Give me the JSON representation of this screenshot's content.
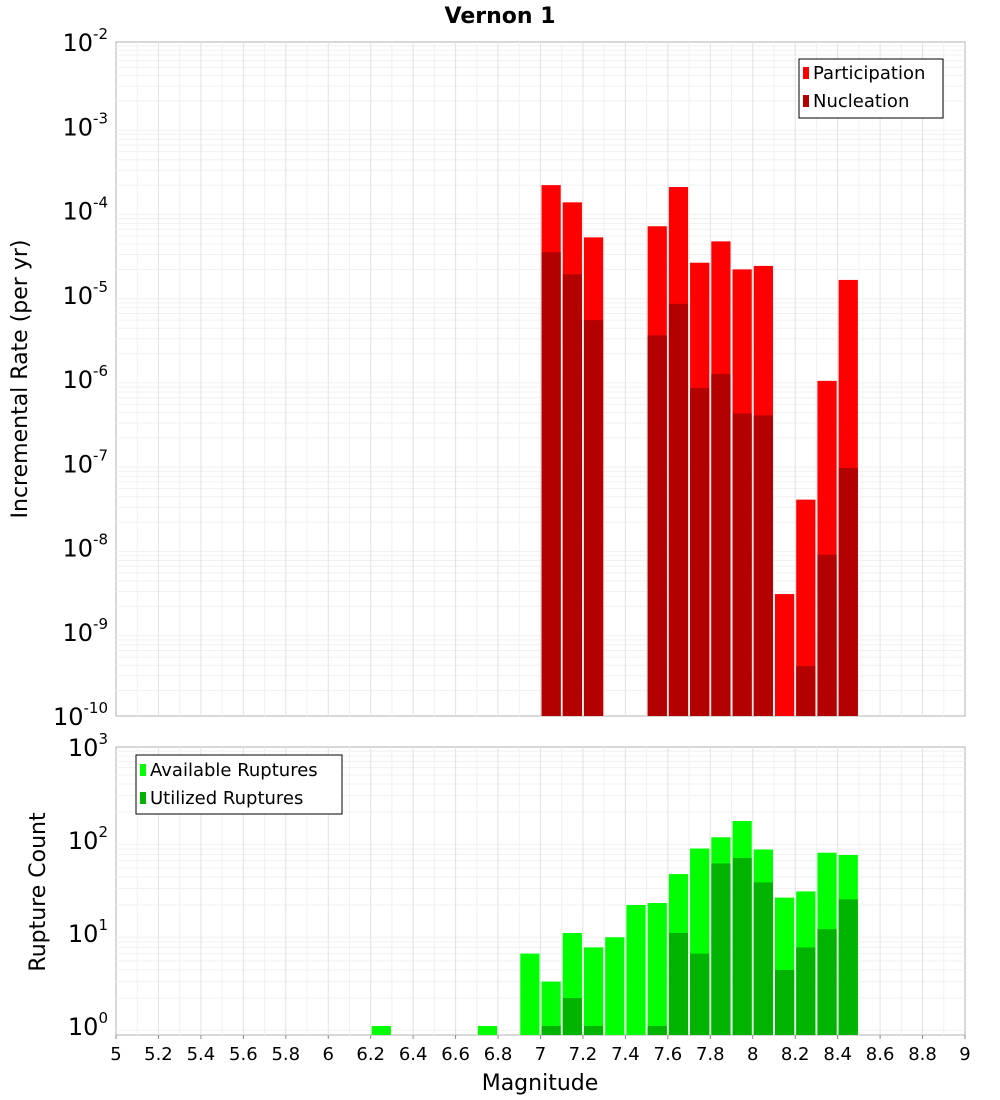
{
  "title": "Vernon 1",
  "colors": {
    "participation": "#ff0000",
    "nucleation": "#b30000",
    "available": "#00ff00",
    "utilized": "#00b300"
  },
  "chart_data": [
    {
      "type": "bar",
      "scale": "log",
      "xlabel": "",
      "ylabel": "Incremental Rate (per yr)",
      "xlim": [
        5,
        9
      ],
      "ylim": [
        1e-10,
        0.01
      ],
      "grid": true,
      "legend_position": "top-right",
      "y_ticks": [
        {
          "base": "10",
          "exp": "-10"
        },
        {
          "base": "10",
          "exp": "-9"
        },
        {
          "base": "10",
          "exp": "-8"
        },
        {
          "base": "10",
          "exp": "-7"
        },
        {
          "base": "10",
          "exp": "-6"
        },
        {
          "base": "10",
          "exp": "-5"
        },
        {
          "base": "10",
          "exp": "-4"
        },
        {
          "base": "10",
          "exp": "-3"
        },
        {
          "base": "10",
          "exp": "-2"
        }
      ],
      "series": [
        {
          "name": "Participation",
          "x": [
            7.05,
            7.15,
            7.25,
            7.55,
            7.65,
            7.75,
            7.85,
            7.95,
            8.05,
            8.15,
            8.25,
            8.35,
            8.45
          ],
          "values": [
            0.0002,
            0.000125,
            4.8e-05,
            6.5e-05,
            0.00019,
            2.4e-05,
            4.3e-05,
            2e-05,
            2.2e-05,
            2.8e-09,
            3.7e-08,
            9.5e-07,
            1.5e-05
          ]
        },
        {
          "name": "Nucleation",
          "x": [
            7.05,
            7.15,
            7.25,
            7.55,
            7.65,
            7.75,
            7.85,
            7.95,
            8.05,
            8.25,
            8.35,
            8.45
          ],
          "values": [
            3.2e-05,
            1.75e-05,
            5e-06,
            3.3e-06,
            7.8e-06,
            7.8e-07,
            1.15e-06,
            3.9e-07,
            3.7e-07,
            3.9e-10,
            8.2e-09,
            8.8e-08
          ]
        }
      ]
    },
    {
      "type": "bar",
      "scale": "log",
      "xlabel": "Magnitude",
      "ylabel": "Rupture Count",
      "xlim": [
        5,
        9
      ],
      "ylim": [
        0.8,
        1000
      ],
      "grid": true,
      "legend_position": "top-left",
      "x_ticks": [
        "5",
        "5.2",
        "5.4",
        "5.6",
        "5.8",
        "6",
        "6.2",
        "6.4",
        "6.6",
        "6.8",
        "7",
        "7.2",
        "7.4",
        "7.6",
        "7.8",
        "8",
        "8.2",
        "8.4",
        "8.6",
        "8.8",
        "9"
      ],
      "y_ticks": [
        {
          "base": "10",
          "exp": "0"
        },
        {
          "base": "10",
          "exp": "1"
        },
        {
          "base": "10",
          "exp": "2"
        },
        {
          "base": "10",
          "exp": "3"
        }
      ],
      "series": [
        {
          "name": "Available Ruptures",
          "x": [
            6.25,
            6.75,
            6.95,
            7.05,
            7.15,
            7.25,
            7.35,
            7.45,
            7.55,
            7.65,
            7.75,
            7.85,
            7.95,
            8.05,
            8.15,
            8.25,
            8.35,
            8.45
          ],
          "values": [
            1,
            1,
            6,
            3,
            10,
            7,
            9,
            20,
            21,
            43,
            81,
            107,
            160,
            79,
            24,
            28,
            73,
            69
          ]
        },
        {
          "name": "Utilized Ruptures",
          "x": [
            7.05,
            7.15,
            7.25,
            7.55,
            7.65,
            7.75,
            7.85,
            7.95,
            8.05,
            8.15,
            8.25,
            8.35,
            8.45
          ],
          "values": [
            1,
            2,
            1,
            1,
            10,
            6,
            56,
            64,
            35,
            4,
            7,
            11,
            23
          ]
        }
      ]
    }
  ]
}
